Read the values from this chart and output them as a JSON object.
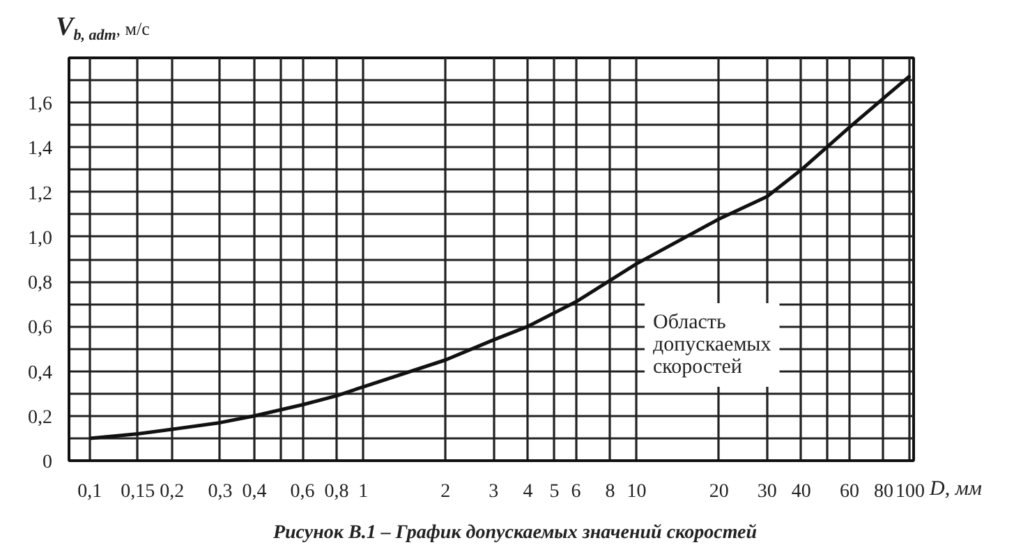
{
  "chart_data": {
    "type": "line",
    "ylabel": "V$_{b, adm}$, м/с",
    "xlabel": "D, мм",
    "annotations": [
      "Область\nдопускаемых\nскоростей",
      "Рисунок В.1 – График допускаемых значений скоростей"
    ],
    "x": [
      0.1,
      0.15,
      0.2,
      0.3,
      0.4,
      0.6,
      0.8,
      1,
      2,
      3,
      4,
      6,
      10,
      20,
      30,
      40,
      60,
      80,
      100
    ],
    "series": [
      {
        "color": "#111111",
        "values": [
          0.1,
          0.12,
          0.14,
          0.17,
          0.2,
          0.25,
          0.29,
          0.33,
          0.45,
          0.54,
          0.6,
          0.71,
          0.88,
          1.08,
          1.18,
          1.3,
          1.49,
          1.62,
          1.72
        ]
      }
    ],
    "log": "x",
    "xlim": [
      0.084,
      103
    ],
    "ylim": [
      0,
      1.8
    ],
    "xticks": [
      {
        "value": 0.1,
        "label": "0,1"
      },
      {
        "value": 0.15,
        "label": "0,15"
      },
      {
        "value": 0.2,
        "label": "0,2"
      },
      {
        "value": 0.3,
        "label": "0,3"
      },
      {
        "value": 0.4,
        "label": "0,4"
      },
      {
        "value": 0.5,
        "label": null
      },
      {
        "value": 0.6,
        "label": "0,6"
      },
      {
        "value": 0.8,
        "label": "0,8"
      },
      1,
      2,
      3,
      4,
      5,
      6,
      8,
      10,
      20,
      30,
      40,
      {
        "value": 50,
        "label": null
      },
      60,
      80,
      100
    ],
    "yticks": [
      0,
      {
        "value": 0.1,
        "label": null
      },
      {
        "value": 0.2,
        "label": "0,2"
      },
      {
        "value": 0.3,
        "label": null
      },
      {
        "value": 0.4,
        "label": "0,4"
      },
      {
        "value": 0.5,
        "label": null
      },
      {
        "value": 0.6,
        "label": "0,6"
      },
      {
        "value": 0.7,
        "label": null
      },
      {
        "value": 0.8,
        "label": "0,8"
      },
      {
        "value": 0.9,
        "label": null
      },
      {
        "value": 1.0,
        "label": "1,0"
      },
      {
        "value": 1.1,
        "label": null
      },
      {
        "value": 1.2,
        "label": "1,2"
      },
      {
        "value": 1.3,
        "label": null
      },
      {
        "value": 1.4,
        "label": "1,4"
      },
      {
        "value": 1.5,
        "label": null
      },
      {
        "value": 1.6,
        "label": "1,6"
      },
      {
        "value": 1.7,
        "label": null
      }
    ],
    "grid": true,
    "marker": "none",
    "line_style": "solid"
  }
}
